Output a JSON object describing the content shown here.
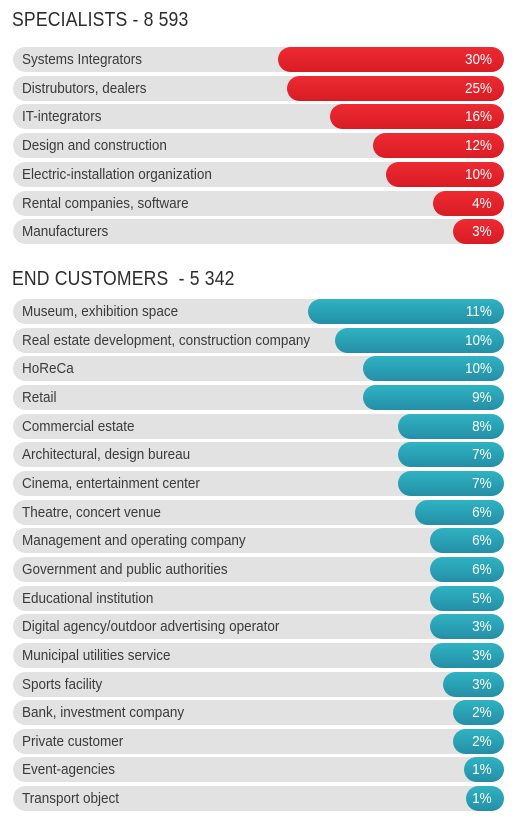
{
  "colors": {
    "specialists": "#e3232b",
    "end_customers": "#2a9fb4",
    "track": "#e2e2e3"
  },
  "chart_data": [
    {
      "type": "bar",
      "orientation": "horizontal",
      "title": "SPECIALISTS - 8 593",
      "value_unit": "%",
      "categories": [
        "Systems Integrators",
        "Distrubutors, dealers",
        "IT-integrators",
        "Design and construction",
        "Electric-installation organization",
        "Rental companies, software",
        "Manufacturers"
      ],
      "values": [
        30,
        25,
        16,
        12,
        10,
        4,
        3
      ],
      "value_labels": [
        "30%",
        "25%",
        "16%",
        "12%",
        "10%",
        "4%",
        "3%"
      ]
    },
    {
      "type": "bar",
      "orientation": "horizontal",
      "title": "END CUSTOMERS  - 5 342",
      "value_unit": "%",
      "categories": [
        "Museum, exhibition space",
        "Real estate development, construction company",
        "HoReCa",
        "Retail",
        "Commercial estate",
        "Architectural, design bureau",
        "Cinema, entertainment center",
        "Theatre, concert venue",
        "Management and operating company",
        "Government and public authorities",
        "Educational institution",
        "Digital agency/outdoor advertising operator",
        "Municipal utilities service",
        "Sports facility",
        "Bank,  investment company",
        "Private customer",
        "Event-agencies",
        "Transport object"
      ],
      "values": [
        11,
        10,
        10,
        9,
        8,
        7,
        7,
        6,
        6,
        6,
        5,
        3,
        3,
        3,
        2,
        2,
        1,
        1
      ],
      "value_labels": [
        "11%",
        "10%",
        "10%",
        "9%",
        "8%",
        "7%",
        "7%",
        "6%",
        "6%",
        "6%",
        "5%",
        "3%",
        "3%",
        "3%",
        "2%",
        "2%",
        "1%",
        "1%"
      ]
    }
  ]
}
